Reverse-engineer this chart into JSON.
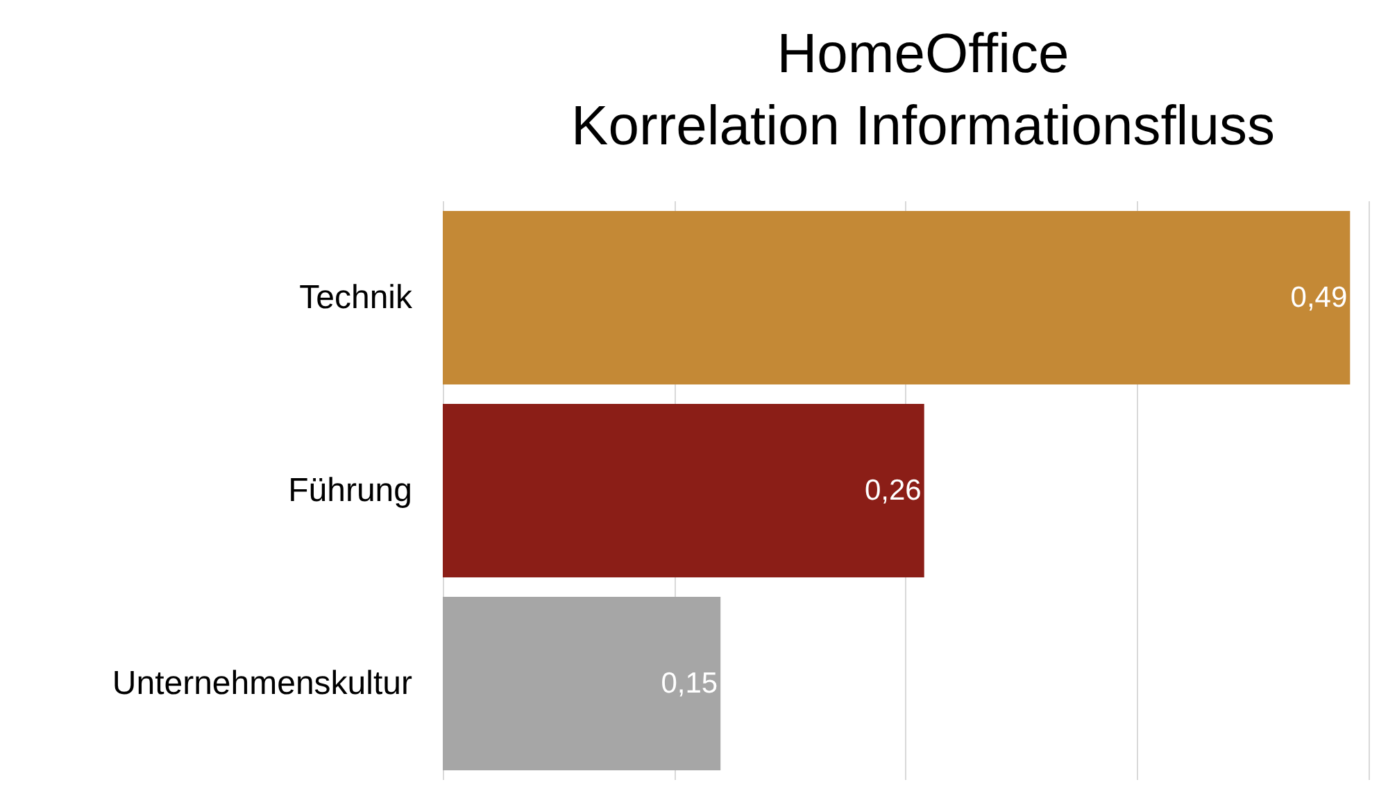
{
  "chart_data": {
    "type": "bar",
    "title": "HomeOffice\nKorrelation Informationsfluss",
    "orientation": "horizontal",
    "categories": [
      "Technik",
      "Führung",
      "Unternehmenskultur"
    ],
    "values": [
      0.49,
      0.26,
      0.15
    ],
    "colors": [
      "#c48936",
      "#8b1e17",
      "#a6a6a6"
    ],
    "value_labels": [
      "0,49",
      "0,26",
      "0,15"
    ],
    "xlim": [
      0,
      0.5
    ],
    "xticks": [
      {
        "value": 0,
        "label": null
      },
      {
        "value": 0.125,
        "label": null
      },
      {
        "value": 0.25,
        "label": null
      },
      {
        "value": 0.375,
        "label": null
      },
      {
        "value": 0.5,
        "label": null
      }
    ],
    "grid": "x",
    "tick_labels": "y"
  }
}
